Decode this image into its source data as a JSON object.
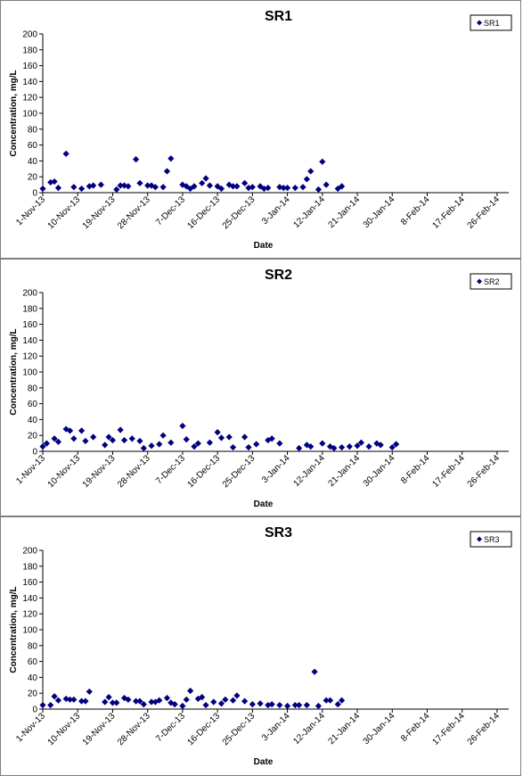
{
  "chart_data": [
    {
      "type": "scatter",
      "title": "SR1",
      "xlabel": "Date",
      "ylabel": "Concentration, mg/L",
      "ylim": [
        0,
        200
      ],
      "yticks": [
        0,
        20,
        40,
        60,
        80,
        100,
        120,
        140,
        160,
        180,
        200
      ],
      "xlim": [
        "2013-11-01",
        "2014-03-01"
      ],
      "xtick_labels": [
        "1-Nov-13",
        "10-Nov-13",
        "19-Nov-13",
        "28-Nov-13",
        "7-Dec-13",
        "16-Dec-13",
        "25-Dec-13",
        "3-Jan-14",
        "12-Jan-14",
        "21-Jan-14",
        "30-Jan-14",
        "8-Feb-14",
        "17-Feb-14",
        "26-Feb-14"
      ],
      "xtick_dates": [
        "2013-11-01",
        "2013-11-10",
        "2013-11-19",
        "2013-11-28",
        "2013-12-07",
        "2013-12-16",
        "2013-12-25",
        "2014-01-03",
        "2014-01-12",
        "2014-01-21",
        "2014-01-30",
        "2014-02-08",
        "2014-02-17",
        "2014-02-26"
      ],
      "grid": false,
      "legend_position": "top-right",
      "marker_color": "#000080",
      "series": [
        {
          "name": "SR1",
          "points": [
            [
              "2013-11-01",
              5
            ],
            [
              "2013-11-03",
              13
            ],
            [
              "2013-11-04",
              14
            ],
            [
              "2013-11-05",
              6
            ],
            [
              "2013-11-07",
              49
            ],
            [
              "2013-11-09",
              7
            ],
            [
              "2013-11-11",
              5
            ],
            [
              "2013-11-13",
              8
            ],
            [
              "2013-11-14",
              9
            ],
            [
              "2013-11-16",
              10
            ],
            [
              "2013-11-20",
              4
            ],
            [
              "2013-11-21",
              9
            ],
            [
              "2013-11-22",
              9
            ],
            [
              "2013-11-23",
              8
            ],
            [
              "2013-11-25",
              42
            ],
            [
              "2013-11-26",
              12
            ],
            [
              "2013-11-28",
              9
            ],
            [
              "2013-11-29",
              9
            ],
            [
              "2013-11-30",
              7
            ],
            [
              "2013-12-02",
              7
            ],
            [
              "2013-12-03",
              27
            ],
            [
              "2013-12-04",
              43
            ],
            [
              "2013-12-07",
              10
            ],
            [
              "2013-12-08",
              8
            ],
            [
              "2013-12-09",
              5
            ],
            [
              "2013-12-10",
              8
            ],
            [
              "2013-12-12",
              12
            ],
            [
              "2013-12-13",
              18
            ],
            [
              "2013-12-14",
              9
            ],
            [
              "2013-12-16",
              8
            ],
            [
              "2013-12-17",
              5
            ],
            [
              "2013-12-19",
              10
            ],
            [
              "2013-12-20",
              8
            ],
            [
              "2013-12-21",
              8
            ],
            [
              "2013-12-23",
              12
            ],
            [
              "2013-12-24",
              6
            ],
            [
              "2013-12-25",
              7
            ],
            [
              "2013-12-27",
              8
            ],
            [
              "2013-12-28",
              5
            ],
            [
              "2013-12-29",
              6
            ],
            [
              "2014-01-01",
              7
            ],
            [
              "2014-01-02",
              6
            ],
            [
              "2014-01-03",
              6
            ],
            [
              "2014-01-05",
              6
            ],
            [
              "2014-01-07",
              7
            ],
            [
              "2014-01-08",
              17
            ],
            [
              "2014-01-09",
              27
            ],
            [
              "2014-01-11",
              4
            ],
            [
              "2014-01-12",
              39
            ],
            [
              "2014-01-13",
              10
            ],
            [
              "2014-01-16",
              5
            ],
            [
              "2014-01-17",
              8
            ]
          ]
        }
      ]
    },
    {
      "type": "scatter",
      "title": "SR2",
      "xlabel": "Date",
      "ylabel": "Concentration, mg/L",
      "ylim": [
        0,
        200
      ],
      "yticks": [
        0,
        20,
        40,
        60,
        80,
        100,
        120,
        140,
        160,
        180,
        200
      ],
      "xlim": [
        "2013-11-01",
        "2014-03-01"
      ],
      "xtick_labels": [
        "1-Nov-13",
        "10-Nov-13",
        "19-Nov-13",
        "28-Nov-13",
        "7-Dec-13",
        "16-Dec-13",
        "25-Dec-13",
        "3-Jan-14",
        "12-Jan-14",
        "21-Jan-14",
        "30-Jan-14",
        "8-Feb-14",
        "17-Feb-14",
        "26-Feb-14"
      ],
      "xtick_dates": [
        "2013-11-01",
        "2013-11-10",
        "2013-11-19",
        "2013-11-28",
        "2013-12-07",
        "2013-12-16",
        "2013-12-25",
        "2014-01-03",
        "2014-01-12",
        "2014-01-21",
        "2014-01-30",
        "2014-02-08",
        "2014-02-17",
        "2014-02-26"
      ],
      "grid": false,
      "legend_position": "top-right",
      "marker_color": "#000080",
      "series": [
        {
          "name": "SR2",
          "points": [
            [
              "2013-11-01",
              6
            ],
            [
              "2013-11-02",
              10
            ],
            [
              "2013-11-04",
              16
            ],
            [
              "2013-11-05",
              12
            ],
            [
              "2013-11-07",
              28
            ],
            [
              "2013-11-08",
              26
            ],
            [
              "2013-11-09",
              16
            ],
            [
              "2013-11-11",
              26
            ],
            [
              "2013-11-12",
              13
            ],
            [
              "2013-11-14",
              18
            ],
            [
              "2013-11-17",
              8
            ],
            [
              "2013-11-18",
              18
            ],
            [
              "2013-11-19",
              14
            ],
            [
              "2013-11-21",
              27
            ],
            [
              "2013-11-22",
              14
            ],
            [
              "2013-11-24",
              16
            ],
            [
              "2013-11-26",
              13
            ],
            [
              "2013-11-27",
              4
            ],
            [
              "2013-11-29",
              7
            ],
            [
              "2013-12-01",
              9
            ],
            [
              "2013-12-02",
              20
            ],
            [
              "2013-12-04",
              11
            ],
            [
              "2013-12-07",
              32
            ],
            [
              "2013-12-08",
              15
            ],
            [
              "2013-12-10",
              6
            ],
            [
              "2013-12-11",
              10
            ],
            [
              "2013-12-14",
              11
            ],
            [
              "2013-12-16",
              24
            ],
            [
              "2013-12-17",
              17
            ],
            [
              "2013-12-19",
              18
            ],
            [
              "2013-12-20",
              5
            ],
            [
              "2013-12-23",
              18
            ],
            [
              "2013-12-24",
              5
            ],
            [
              "2013-12-26",
              9
            ],
            [
              "2013-12-29",
              14
            ],
            [
              "2013-12-30",
              16
            ],
            [
              "2014-01-01",
              10
            ],
            [
              "2014-01-06",
              4
            ],
            [
              "2014-01-08",
              8
            ],
            [
              "2014-01-09",
              6
            ],
            [
              "2014-01-12",
              10
            ],
            [
              "2014-01-14",
              6
            ],
            [
              "2014-01-15",
              4
            ],
            [
              "2014-01-17",
              5
            ],
            [
              "2014-01-19",
              6
            ],
            [
              "2014-01-21",
              7
            ],
            [
              "2014-01-22",
              11
            ],
            [
              "2014-01-24",
              6
            ],
            [
              "2014-01-26",
              10
            ],
            [
              "2014-01-27",
              8
            ],
            [
              "2014-01-30",
              5
            ],
            [
              "2014-01-31",
              9
            ]
          ]
        }
      ]
    },
    {
      "type": "scatter",
      "title": "SR3",
      "xlabel": "Date",
      "ylabel": "Concentration, mg/L",
      "ylim": [
        0,
        200
      ],
      "yticks": [
        0,
        20,
        40,
        60,
        80,
        100,
        120,
        140,
        160,
        180,
        200
      ],
      "xlim": [
        "2013-11-01",
        "2014-03-01"
      ],
      "xtick_labels": [
        "1-Nov-13",
        "10-Nov-13",
        "19-Nov-13",
        "28-Nov-13",
        "7-Dec-13",
        "16-Dec-13",
        "25-Dec-13",
        "3-Jan-14",
        "12-Jan-14",
        "21-Jan-14",
        "30-Jan-14",
        "8-Feb-14",
        "17-Feb-14",
        "26-Feb-14"
      ],
      "xtick_dates": [
        "2013-11-01",
        "2013-11-10",
        "2013-11-19",
        "2013-11-28",
        "2013-12-07",
        "2013-12-16",
        "2013-12-25",
        "2014-01-03",
        "2014-01-12",
        "2014-01-21",
        "2014-01-30",
        "2014-02-08",
        "2014-02-17",
        "2014-02-26"
      ],
      "grid": false,
      "legend_position": "top-right",
      "marker_color": "#000080",
      "series": [
        {
          "name": "SR3",
          "points": [
            [
              "2013-11-01",
              5
            ],
            [
              "2013-11-03",
              5
            ],
            [
              "2013-11-04",
              16
            ],
            [
              "2013-11-05",
              11
            ],
            [
              "2013-11-07",
              13
            ],
            [
              "2013-11-08",
              12
            ],
            [
              "2013-11-09",
              12
            ],
            [
              "2013-11-11",
              10
            ],
            [
              "2013-11-12",
              10
            ],
            [
              "2013-11-13",
              22
            ],
            [
              "2013-11-17",
              9
            ],
            [
              "2013-11-18",
              15
            ],
            [
              "2013-11-19",
              8
            ],
            [
              "2013-11-20",
              8
            ],
            [
              "2013-11-22",
              14
            ],
            [
              "2013-11-23",
              12
            ],
            [
              "2013-11-25",
              10
            ],
            [
              "2013-11-26",
              10
            ],
            [
              "2013-11-27",
              6
            ],
            [
              "2013-11-29",
              9
            ],
            [
              "2013-11-30",
              9
            ],
            [
              "2013-12-01",
              11
            ],
            [
              "2013-12-03",
              14
            ],
            [
              "2013-12-04",
              8
            ],
            [
              "2013-12-05",
              6
            ],
            [
              "2013-12-07",
              4
            ],
            [
              "2013-12-08",
              12
            ],
            [
              "2013-12-09",
              23
            ],
            [
              "2013-12-11",
              13
            ],
            [
              "2013-12-12",
              15
            ],
            [
              "2013-12-13",
              5
            ],
            [
              "2013-12-15",
              9
            ],
            [
              "2013-12-17",
              7
            ],
            [
              "2013-12-18",
              12
            ],
            [
              "2013-12-20",
              11
            ],
            [
              "2013-12-21",
              17
            ],
            [
              "2013-12-23",
              10
            ],
            [
              "2013-12-25",
              6
            ],
            [
              "2013-12-27",
              7
            ],
            [
              "2013-12-29",
              5
            ],
            [
              "2013-12-30",
              6
            ],
            [
              "2014-01-01",
              5
            ],
            [
              "2014-01-03",
              4
            ],
            [
              "2014-01-05",
              5
            ],
            [
              "2014-01-06",
              5
            ],
            [
              "2014-01-08",
              5
            ],
            [
              "2014-01-10",
              47
            ],
            [
              "2014-01-11",
              4
            ],
            [
              "2014-01-13",
              11
            ],
            [
              "2014-01-14",
              11
            ],
            [
              "2014-01-16",
              6
            ],
            [
              "2014-01-17",
              11
            ]
          ]
        }
      ]
    }
  ]
}
